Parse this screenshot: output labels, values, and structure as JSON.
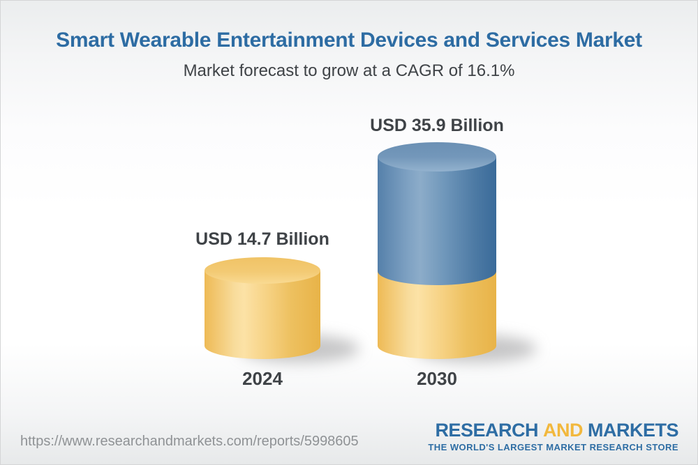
{
  "chart_data": {
    "type": "bar",
    "subtype": "3d-cylinder-column",
    "title": "Smart Wearable Entertainment Devices and Services Market",
    "subtitle": "Market forecast to grow at a CAGR of 16.1%",
    "cagr_percent": 16.1,
    "unit": "USD Billion",
    "categories": [
      "2024",
      "2030"
    ],
    "values": [
      14.7,
      35.9
    ],
    "value_labels": [
      "USD 14.7 Billion",
      "USD 35.9 Billion"
    ],
    "series": [
      {
        "name": "2024 base (gold segment)",
        "color": "#F3C876",
        "values": [
          14.7,
          14.7
        ]
      },
      {
        "name": "2030 growth (blue segment)",
        "color": "#6690B6",
        "values": [
          0,
          21.2
        ]
      }
    ],
    "ylim": [
      0,
      40
    ],
    "grid": false,
    "legend": "none",
    "axes": "hidden"
  },
  "footer": {
    "url": "https://www.researchandmarkets.com/reports/5998605",
    "logo": {
      "word1": "RESEARCH",
      "word2": "AND",
      "word3": "MARKETS",
      "tagline": "THE WORLD'S LARGEST MARKET RESEARCH STORE"
    }
  },
  "colors": {
    "title_blue": "#2D6CA3",
    "text_dark": "#3F4347",
    "url_gray": "#8F9295",
    "logo_blue": "#2E6DA4",
    "logo_gold": "#F2B83D",
    "bar_gold": "#F3C876",
    "bar_blue": "#6690B6"
  }
}
